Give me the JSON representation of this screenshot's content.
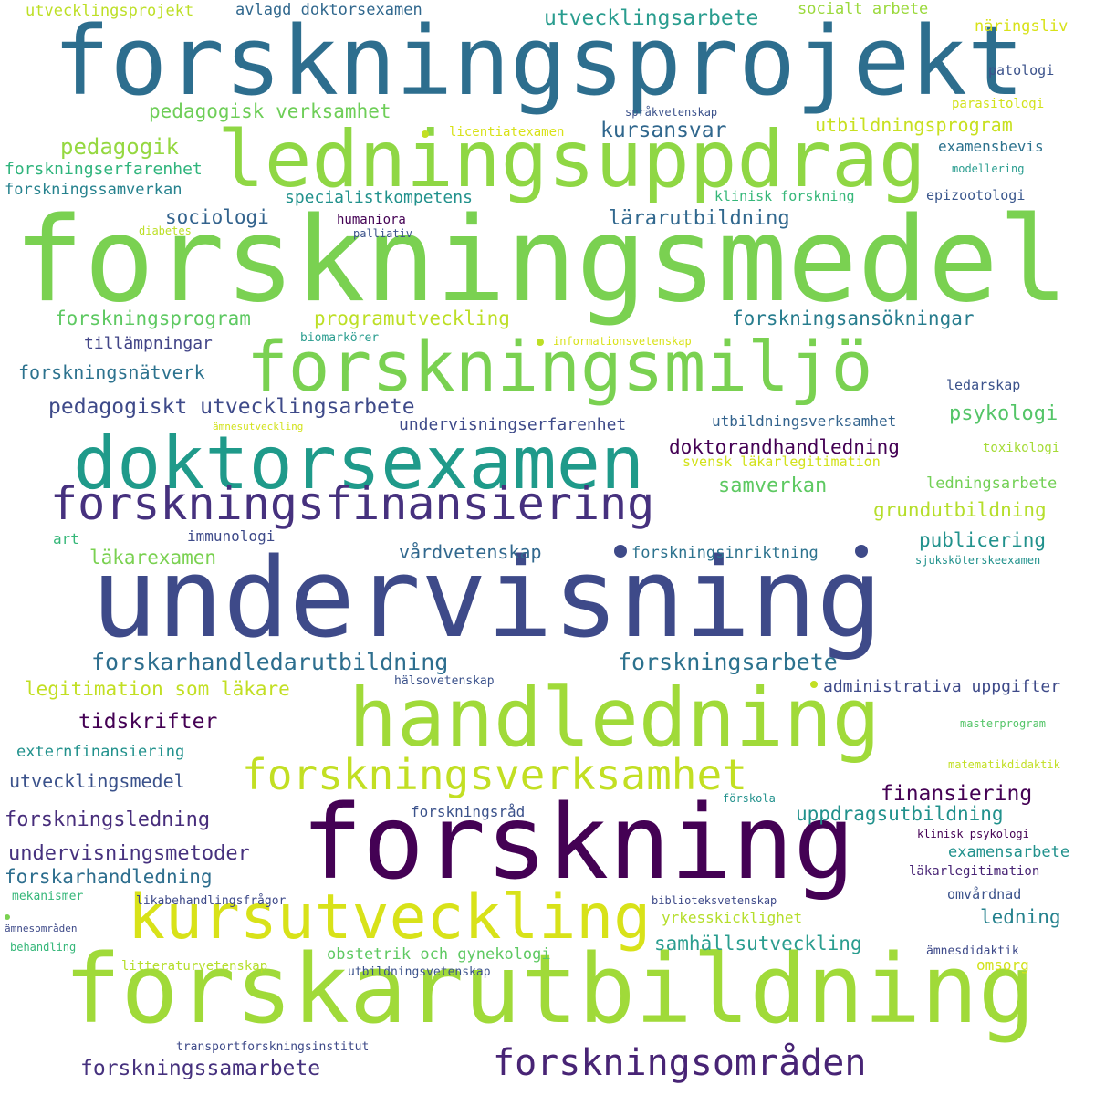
{
  "word_cloud": {
    "background": "#ffffff",
    "words": [
      {
        "text": "forskningsprojekt",
        "color": "#2d6e8e"
      },
      {
        "text": "ledningsuppdrag",
        "color": "#8fd744"
      },
      {
        "text": "forskningsmedel",
        "color": "#7ad151"
      },
      {
        "text": "forskningsmiljö",
        "color": "#7ad151"
      },
      {
        "text": "doktorsexamen",
        "color": "#1f9a8a"
      },
      {
        "text": "forskningsfinansiering",
        "color": "#46317e"
      },
      {
        "text": "undervisning",
        "color": "#3e4a89"
      },
      {
        "text": "handledning",
        "color": "#a0da39"
      },
      {
        "text": "forskningsverksamhet",
        "color": "#c2df23"
      },
      {
        "text": "forskning",
        "color": "#440154"
      },
      {
        "text": "kursutveckling",
        "color": "#d8e219"
      },
      {
        "text": "forskarutbildning",
        "color": "#a0da39"
      },
      {
        "text": "forskningsområden",
        "color": "#482475"
      },
      {
        "text": "utvecklingsprojekt",
        "color": "#bddf26"
      },
      {
        "text": "avlagd doktorsexamen",
        "color": "#31688e"
      },
      {
        "text": "utvecklingsarbete",
        "color": "#2a9d8f"
      },
      {
        "text": "socialt arbete",
        "color": "#9bd93c"
      },
      {
        "text": "näringsliv",
        "color": "#d8e219"
      },
      {
        "text": "patologi",
        "color": "#3b528b"
      },
      {
        "text": "parasitologi",
        "color": "#d2e21b"
      },
      {
        "text": "pedagogisk verksamhet",
        "color": "#6ece58"
      },
      {
        "text": "språkvetenskap",
        "color": "#3b528b"
      },
      {
        "text": "utbildningsprogram",
        "color": "#c8e020"
      },
      {
        "text": "licentiatexamen",
        "color": "#d8e219"
      },
      {
        "text": "kursansvar",
        "color": "#30678d"
      },
      {
        "text": "examensbevis",
        "color": "#2c728e"
      },
      {
        "text": "pedagogik",
        "color": "#95d840"
      },
      {
        "text": "forskningserfarenhet",
        "color": "#2fb47c"
      },
      {
        "text": "modellering",
        "color": "#2a9d8f"
      },
      {
        "text": "forskningssamverkan",
        "color": "#26828e"
      },
      {
        "text": "specialistkompetens",
        "color": "#21918c"
      },
      {
        "text": "klinisk forskning",
        "color": "#35b779"
      },
      {
        "text": "epizootologi",
        "color": "#39568c"
      },
      {
        "text": "sociologi",
        "color": "#33638d"
      },
      {
        "text": "humaniora",
        "color": "#440154"
      },
      {
        "text": "lärarutbildning",
        "color": "#31688e"
      },
      {
        "text": "diabetes",
        "color": "#bddf26"
      },
      {
        "text": "palliativ",
        "color": "#3b528b"
      },
      {
        "text": "forskningsprogram",
        "color": "#5ec962"
      },
      {
        "text": "programutveckling",
        "color": "#bddf26"
      },
      {
        "text": "forskningsansökningar",
        "color": "#287d8e"
      },
      {
        "text": "tillämpningar",
        "color": "#414487"
      },
      {
        "text": "biomarkörer",
        "color": "#2a9d8f"
      },
      {
        "text": "informationsvetenskap",
        "color": "#d8e219"
      },
      {
        "text": "forskningsnätverk",
        "color": "#2c728e"
      },
      {
        "text": "ledarskap",
        "color": "#3b528b"
      },
      {
        "text": "pedagogiskt utvecklingsarbete",
        "color": "#3e4a89"
      },
      {
        "text": "psykologi",
        "color": "#54c568"
      },
      {
        "text": "ämnesutveckling",
        "color": "#d2e21b"
      },
      {
        "text": "undervisningserfarenhet",
        "color": "#3e4a89"
      },
      {
        "text": "utbildningsverksamhet",
        "color": "#33638d"
      },
      {
        "text": "doktorandhandledning",
        "color": "#440154"
      },
      {
        "text": "toxikologi",
        "color": "#a5db36"
      },
      {
        "text": "svensk läkarlegitimation",
        "color": "#d2e21b"
      },
      {
        "text": "samverkan",
        "color": "#5ec962"
      },
      {
        "text": "ledningsarbete",
        "color": "#73d056"
      },
      {
        "text": "grundutbildning",
        "color": "#b5de2b"
      },
      {
        "text": "art",
        "color": "#35b779"
      },
      {
        "text": "immunologi",
        "color": "#3e4a89"
      },
      {
        "text": "publicering",
        "color": "#21918c"
      },
      {
        "text": "läkarexamen",
        "color": "#7ad151"
      },
      {
        "text": "vårdvetenskap",
        "color": "#31688e"
      },
      {
        "text": "forskningsinriktning",
        "color": "#2c728e"
      },
      {
        "text": "sjuksköterskeexamen",
        "color": "#21918c"
      },
      {
        "text": "forskarhandledarutbildning",
        "color": "#2d6e8e"
      },
      {
        "text": "forskningsarbete",
        "color": "#2c728e"
      },
      {
        "text": "legitimation som läkare",
        "color": "#c2df23"
      },
      {
        "text": "hälsovetenskap",
        "color": "#3b528b"
      },
      {
        "text": "administrativa uppgifter",
        "color": "#3e4a89"
      },
      {
        "text": "tidskrifter",
        "color": "#440154"
      },
      {
        "text": "masterprogram",
        "color": "#54c568"
      },
      {
        "text": "externfinansiering",
        "color": "#21918c"
      },
      {
        "text": "matematikdidaktik",
        "color": "#c2df23"
      },
      {
        "text": "utvecklingsmedel",
        "color": "#3b528b"
      },
      {
        "text": "finansiering",
        "color": "#440154"
      },
      {
        "text": "förskola",
        "color": "#21918c"
      },
      {
        "text": "forskningsledning",
        "color": "#472d7b"
      },
      {
        "text": "forskningsråd",
        "color": "#3b528b"
      },
      {
        "text": "uppdragsutbildning",
        "color": "#21918c"
      },
      {
        "text": "klinisk psykologi",
        "color": "#440154"
      },
      {
        "text": "undervisningsmetoder",
        "color": "#46317e"
      },
      {
        "text": "examensarbete",
        "color": "#21918c"
      },
      {
        "text": "forskarhandledning",
        "color": "#2d6e8e"
      },
      {
        "text": "läkarlegitimation",
        "color": "#482475"
      },
      {
        "text": "mekanismer",
        "color": "#35b779"
      },
      {
        "text": "likabehandlingsfrågor",
        "color": "#3e4a89"
      },
      {
        "text": "biblioteksvetenskap",
        "color": "#3e4a89"
      },
      {
        "text": "omvårdnad",
        "color": "#3b528b"
      },
      {
        "text": "yrkesskicklighet",
        "color": "#b5de2b"
      },
      {
        "text": "ledning",
        "color": "#26828e"
      },
      {
        "text": "ämnesområden",
        "color": "#3e4a89"
      },
      {
        "text": "samhällsutveckling",
        "color": "#2a9d8f"
      },
      {
        "text": "behandling",
        "color": "#35b779"
      },
      {
        "text": "obstetrik och gynekologi",
        "color": "#5ec962"
      },
      {
        "text": "ämnesdidaktik",
        "color": "#3e4a89"
      },
      {
        "text": "litteraturvetenskap",
        "color": "#b5de2b"
      },
      {
        "text": "omsorg",
        "color": "#d2e21b"
      },
      {
        "text": "utbildningsvetenskap",
        "color": "#3b528b"
      },
      {
        "text": "transportforskningsinstitut",
        "color": "#3e4a89"
      },
      {
        "text": "forskningssamarbete",
        "color": "#46317e"
      }
    ],
    "dots": [
      {
        "color": "#c2df23"
      },
      {
        "color": "#bddf26"
      },
      {
        "color": "#3e4a89"
      },
      {
        "color": "#3e4a89"
      },
      {
        "color": "#c2df23"
      },
      {
        "color": "#7ad151"
      }
    ]
  }
}
